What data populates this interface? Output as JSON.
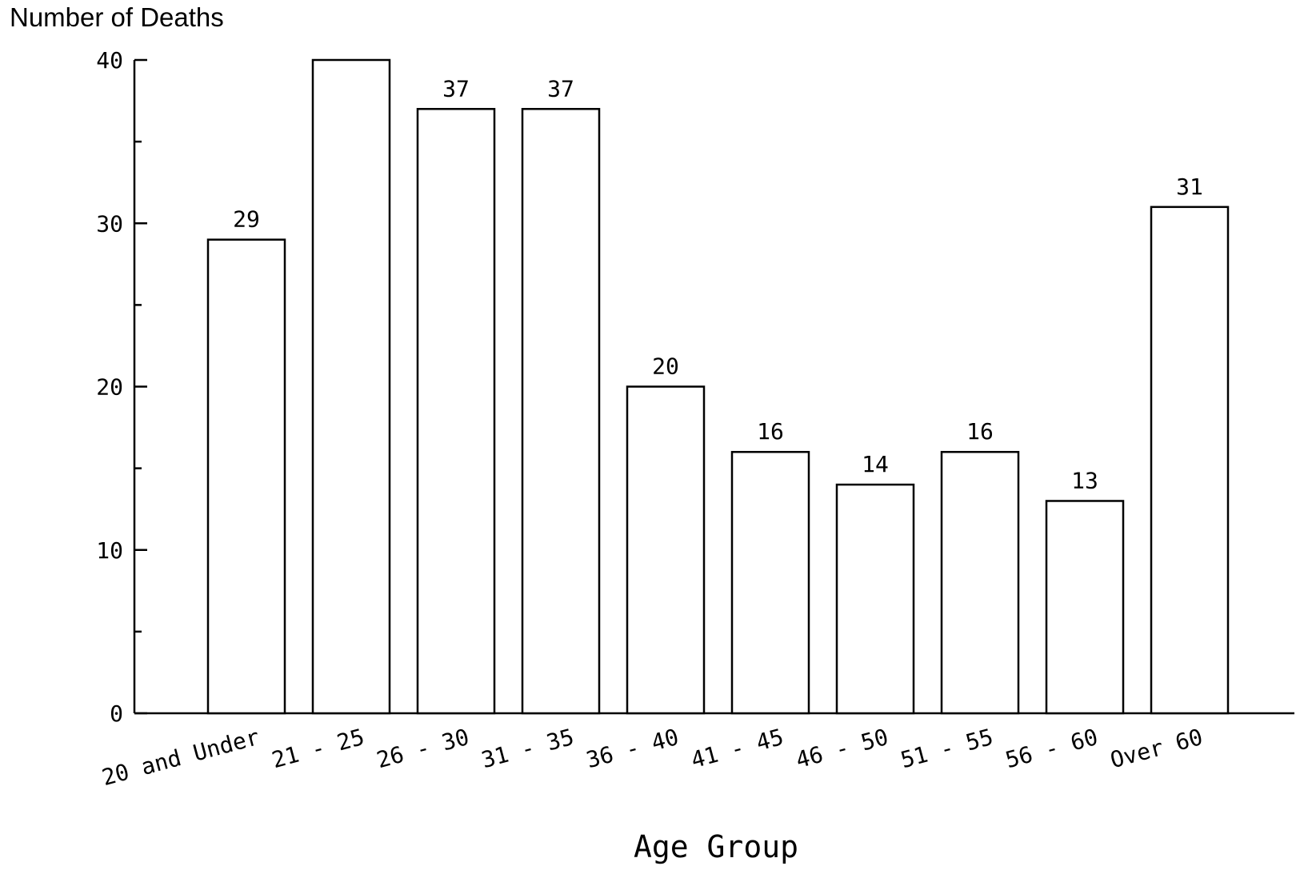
{
  "chart_data": {
    "type": "bar",
    "ylabel": "Number of Deaths",
    "xlabel": "Age Group",
    "categories": [
      "20 and Under",
      "21 - 25",
      "26 - 30",
      "31 - 35",
      "36 - 40",
      "41 - 45",
      "46 - 50",
      "51 - 55",
      "56 - 60",
      "Over 60"
    ],
    "values": [
      29,
      40,
      37,
      37,
      20,
      16,
      14,
      16,
      13,
      31
    ],
    "data_labels": [
      "29",
      "",
      "37",
      "37",
      "20",
      "16",
      "14",
      "16",
      "13",
      "31"
    ],
    "ylim": [
      0,
      40
    ],
    "yticks": [
      0,
      10,
      20,
      30,
      40
    ],
    "yticks_minor": [
      5,
      15,
      25,
      35
    ],
    "grid": false,
    "bar_fill": "#ffffff",
    "bar_stroke": "#000000"
  }
}
